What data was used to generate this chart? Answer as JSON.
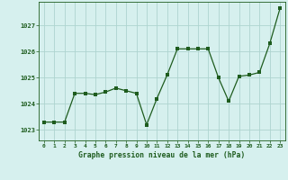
{
  "hours": [
    0,
    1,
    2,
    3,
    4,
    5,
    6,
    7,
    8,
    9,
    10,
    11,
    12,
    13,
    14,
    15,
    16,
    17,
    18,
    19,
    20,
    21,
    22,
    23
  ],
  "pressure": [
    1023.3,
    1023.3,
    1023.3,
    1024.4,
    1024.4,
    1024.35,
    1024.45,
    1024.6,
    1024.5,
    1024.4,
    1023.2,
    1024.2,
    1025.1,
    1026.1,
    1026.1,
    1026.1,
    1026.1,
    1025.0,
    1024.1,
    1025.05,
    1025.1,
    1025.2,
    1026.3,
    1027.65
  ],
  "line_color": "#1e5c1e",
  "marker_color": "#1e5c1e",
  "bg_color": "#d6f0ee",
  "grid_color": "#aed4d0",
  "xlabel": "Graphe pression niveau de la mer (hPa)",
  "xlabel_color": "#1e5c1e",
  "tick_color": "#1e5c1e",
  "ylim": [
    1022.6,
    1027.9
  ],
  "yticks": [
    1023,
    1024,
    1025,
    1026,
    1027
  ],
  "figsize": [
    3.2,
    2.0
  ],
  "dpi": 100
}
